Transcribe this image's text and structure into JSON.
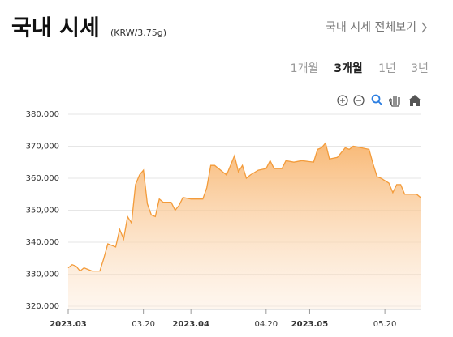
{
  "header": {
    "title": "국내 시세",
    "unit": "(KRW/3.75g)",
    "link": "국내 시세 전체보기"
  },
  "tabs": [
    "1개월",
    "3개월",
    "1년",
    "3년"
  ],
  "active_tab": 1,
  "chart_data": {
    "type": "area",
    "color": "#f39b3a",
    "grid": true,
    "x": [
      "2023-03-01",
      "2023-03-02",
      "2023-03-03",
      "2023-03-04",
      "2023-03-05",
      "2023-03-06",
      "2023-03-07",
      "2023-03-08",
      "2023-03-09",
      "2023-03-10",
      "2023-03-11",
      "2023-03-13",
      "2023-03-14",
      "2023-03-15",
      "2023-03-16",
      "2023-03-17",
      "2023-03-18",
      "2023-03-19",
      "2023-03-20",
      "2023-03-21",
      "2023-03-22",
      "2023-03-23",
      "2023-03-24",
      "2023-03-25",
      "2023-03-27",
      "2023-03-28",
      "2023-03-29",
      "2023-03-30",
      "2023-04-01",
      "2023-04-04",
      "2023-04-05",
      "2023-04-06",
      "2023-04-07",
      "2023-04-08",
      "2023-04-10",
      "2023-04-11",
      "2023-04-12",
      "2023-04-13",
      "2023-04-14",
      "2023-04-15",
      "2023-04-16",
      "2023-04-18",
      "2023-04-20",
      "2023-04-21",
      "2023-04-22",
      "2023-04-24",
      "2023-04-25",
      "2023-04-27",
      "2023-04-29",
      "2023-05-02",
      "2023-05-03",
      "2023-05-04",
      "2023-05-05",
      "2023-05-06",
      "2023-05-08",
      "2023-05-10",
      "2023-05-11",
      "2023-05-12",
      "2023-05-14",
      "2023-05-16",
      "2023-05-17",
      "2023-05-18",
      "2023-05-19",
      "2023-05-21",
      "2023-05-22",
      "2023-05-23",
      "2023-05-24",
      "2023-05-25",
      "2023-05-28",
      "2023-05-29"
    ],
    "values": [
      332000,
      333000,
      332500,
      331000,
      332000,
      331500,
      331000,
      331000,
      331000,
      335000,
      339500,
      338500,
      344000,
      341000,
      348000,
      346000,
      358000,
      361000,
      362500,
      352000,
      348500,
      348000,
      353500,
      352500,
      352500,
      350000,
      351500,
      354000,
      353500,
      353500,
      357000,
      364000,
      364000,
      363000,
      361000,
      364000,
      367000,
      362000,
      364000,
      360000,
      361000,
      362500,
      363000,
      365500,
      363000,
      363000,
      365500,
      365000,
      365500,
      365000,
      369000,
      369500,
      371000,
      366000,
      366500,
      369500,
      369000,
      370000,
      369500,
      369000,
      364500,
      360500,
      360000,
      358500,
      355500,
      358000,
      358000,
      355000,
      355000,
      354000
    ],
    "xlim": [
      "2023-03-01",
      "2023-05-29"
    ],
    "xticks": [
      {
        "value": "2023-03-01",
        "label": "2023.03"
      },
      {
        "value": "2023-03-20",
        "label": "03.20"
      },
      {
        "value": "2023-04-01",
        "label": "2023.04"
      },
      {
        "value": "2023-04-20",
        "label": "04.20"
      },
      {
        "value": "2023-05-01",
        "label": "2023.05"
      },
      {
        "value": "2023-05-20",
        "label": "05.20"
      }
    ],
    "ylim": [
      319000,
      381000
    ],
    "yticks": [
      {
        "value": 320000,
        "label": "320,000"
      },
      {
        "value": 330000,
        "label": "330,000"
      },
      {
        "value": 340000,
        "label": "340,000"
      },
      {
        "value": 350000,
        "label": "350,000"
      },
      {
        "value": 360000,
        "label": "360,000"
      },
      {
        "value": 370000,
        "label": "370,000"
      },
      {
        "value": 380000,
        "label": "380,000"
      }
    ]
  }
}
